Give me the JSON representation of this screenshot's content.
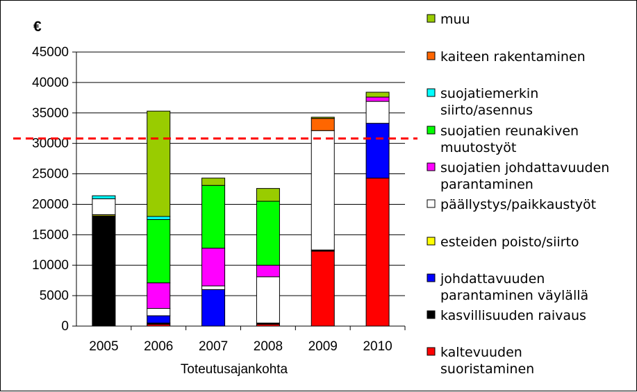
{
  "chart_data": {
    "type": "bar",
    "stacked": true,
    "y_unit_label": "€",
    "xlabel": "Toteutusajankohta",
    "ylabel": "",
    "ylim": [
      0,
      45000
    ],
    "yticks": [
      0,
      5000,
      10000,
      15000,
      20000,
      25000,
      30000,
      35000,
      40000,
      45000
    ],
    "grid": "horizontal",
    "legend_position": "right",
    "categories": [
      "2005",
      "2006",
      "2007",
      "2008",
      "2009",
      "2010"
    ],
    "series": [
      {
        "name": "kaltevuuden suoristaminen",
        "color": "#ff0000",
        "values": [
          0,
          300,
          0,
          300,
          12300,
          24300
        ]
      },
      {
        "name": "kasvillisuuden raivaus",
        "color": "#000000",
        "values": [
          18100,
          200,
          0,
          200,
          200,
          0
        ]
      },
      {
        "name": "johdattavuuden parantaminen väylällä",
        "color": "#0000ff",
        "values": [
          0,
          1200,
          6000,
          0,
          0,
          9000
        ]
      },
      {
        "name": "esteiden poisto/siirto",
        "color": "#ffff00",
        "values": [
          200,
          0,
          0,
          0,
          0,
          0
        ]
      },
      {
        "name": "päällystys/paikkaustyöt",
        "color": "#ffffff",
        "values": [
          2600,
          1200,
          600,
          7600,
          19600,
          3600
        ]
      },
      {
        "name": "suojatien johdattavuuden parantaminen",
        "color": "#ff00ff",
        "values": [
          0,
          4200,
          6200,
          1900,
          0,
          700
        ]
      },
      {
        "name": "suojatien reunakiven muutostyöt",
        "color": "#00ff00",
        "values": [
          0,
          10400,
          10300,
          10500,
          0,
          0
        ]
      },
      {
        "name": "suojatiemerkin siirto/asennus",
        "color": "#00ffff",
        "values": [
          500,
          500,
          0,
          0,
          0,
          0
        ]
      },
      {
        "name": "kaiteen rakentaminen",
        "color": "#ff6600",
        "values": [
          0,
          0,
          0,
          0,
          2000,
          0
        ]
      },
      {
        "name": "muu",
        "color": "#99cc00",
        "values": [
          0,
          17300,
          1200,
          2100,
          200,
          800
        ]
      }
    ],
    "reference_line": {
      "value": 30800,
      "color": "#ff0000",
      "style": "dashed"
    }
  },
  "legend_display": [
    {
      "series": "muu",
      "lines": [
        "muu"
      ]
    },
    {
      "series": "kaiteen rakentaminen",
      "lines": [
        "kaiteen rakentaminen"
      ]
    },
    {
      "series": "suojatiemerkin siirto/asennus",
      "lines": [
        "suojatiemerkin",
        "siirto/asennus"
      ]
    },
    {
      "series": "suojatien reunakiven muutostyöt",
      "lines": [
        "suojatien reunakiven",
        "muutostyöt"
      ]
    },
    {
      "series": "suojatien johdattavuuden parantaminen",
      "lines": [
        "suojatien johdattavuuden",
        "parantaminen"
      ]
    },
    {
      "series": "päällystys/paikkaustyöt",
      "lines": [
        "päällystys/paikkaustyöt"
      ]
    },
    {
      "series": "esteiden poisto/siirto",
      "lines": [
        "esteiden poisto/siirto"
      ]
    },
    {
      "series": "johdattavuuden parantaminen väylällä",
      "lines": [
        "johdattavuuden",
        "parantaminen väylällä"
      ]
    },
    {
      "series": "kasvillisuuden raivaus",
      "lines": [
        "kasvillisuuden raivaus"
      ]
    },
    {
      "series": "kaltevuuden suoristaminen",
      "lines": [
        "kaltevuuden",
        "suoristaminen"
      ]
    }
  ]
}
